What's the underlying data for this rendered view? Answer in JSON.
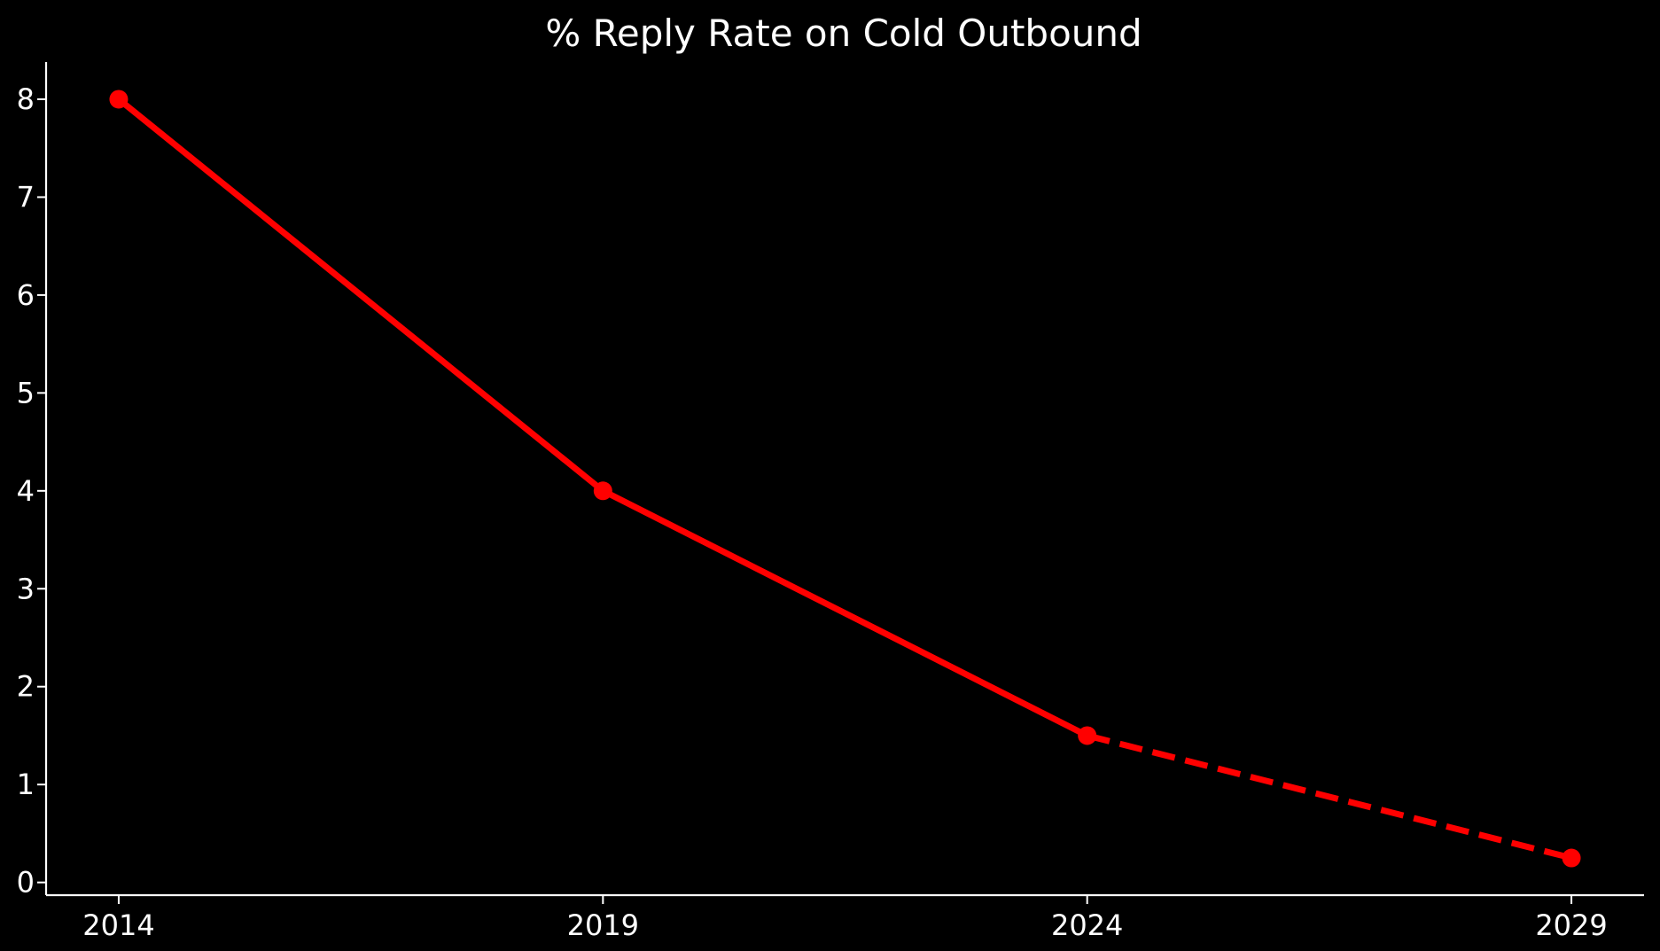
{
  "chart_data": {
    "type": "line",
    "title": "% Reply Rate on Cold Outbound",
    "xlabel": "",
    "ylabel": "",
    "x": [
      2014,
      2019,
      2024,
      2029
    ],
    "x_tick_labels": [
      "2014",
      "2019",
      "2024",
      "2029"
    ],
    "y_ticks": [
      0,
      1,
      2,
      3,
      4,
      5,
      6,
      7,
      8
    ],
    "y_tick_labels": [
      "0",
      "1",
      "2",
      "3",
      "4",
      "5",
      "6",
      "7",
      "8"
    ],
    "xlim": [
      2013.25,
      2029.75
    ],
    "ylim": [
      -0.13,
      8.38
    ],
    "series": [
      {
        "values": [
          8,
          4,
          1.5,
          0.25
        ],
        "segments": [
          {
            "from_index": 0,
            "to_index": 2,
            "style": "solid"
          },
          {
            "from_index": 2,
            "to_index": 3,
            "style": "dashed"
          }
        ],
        "color": "#ff0000",
        "marker": "circle"
      }
    ],
    "grid": false,
    "legend": "none",
    "background": "#000000",
    "foreground": "#ffffff"
  }
}
